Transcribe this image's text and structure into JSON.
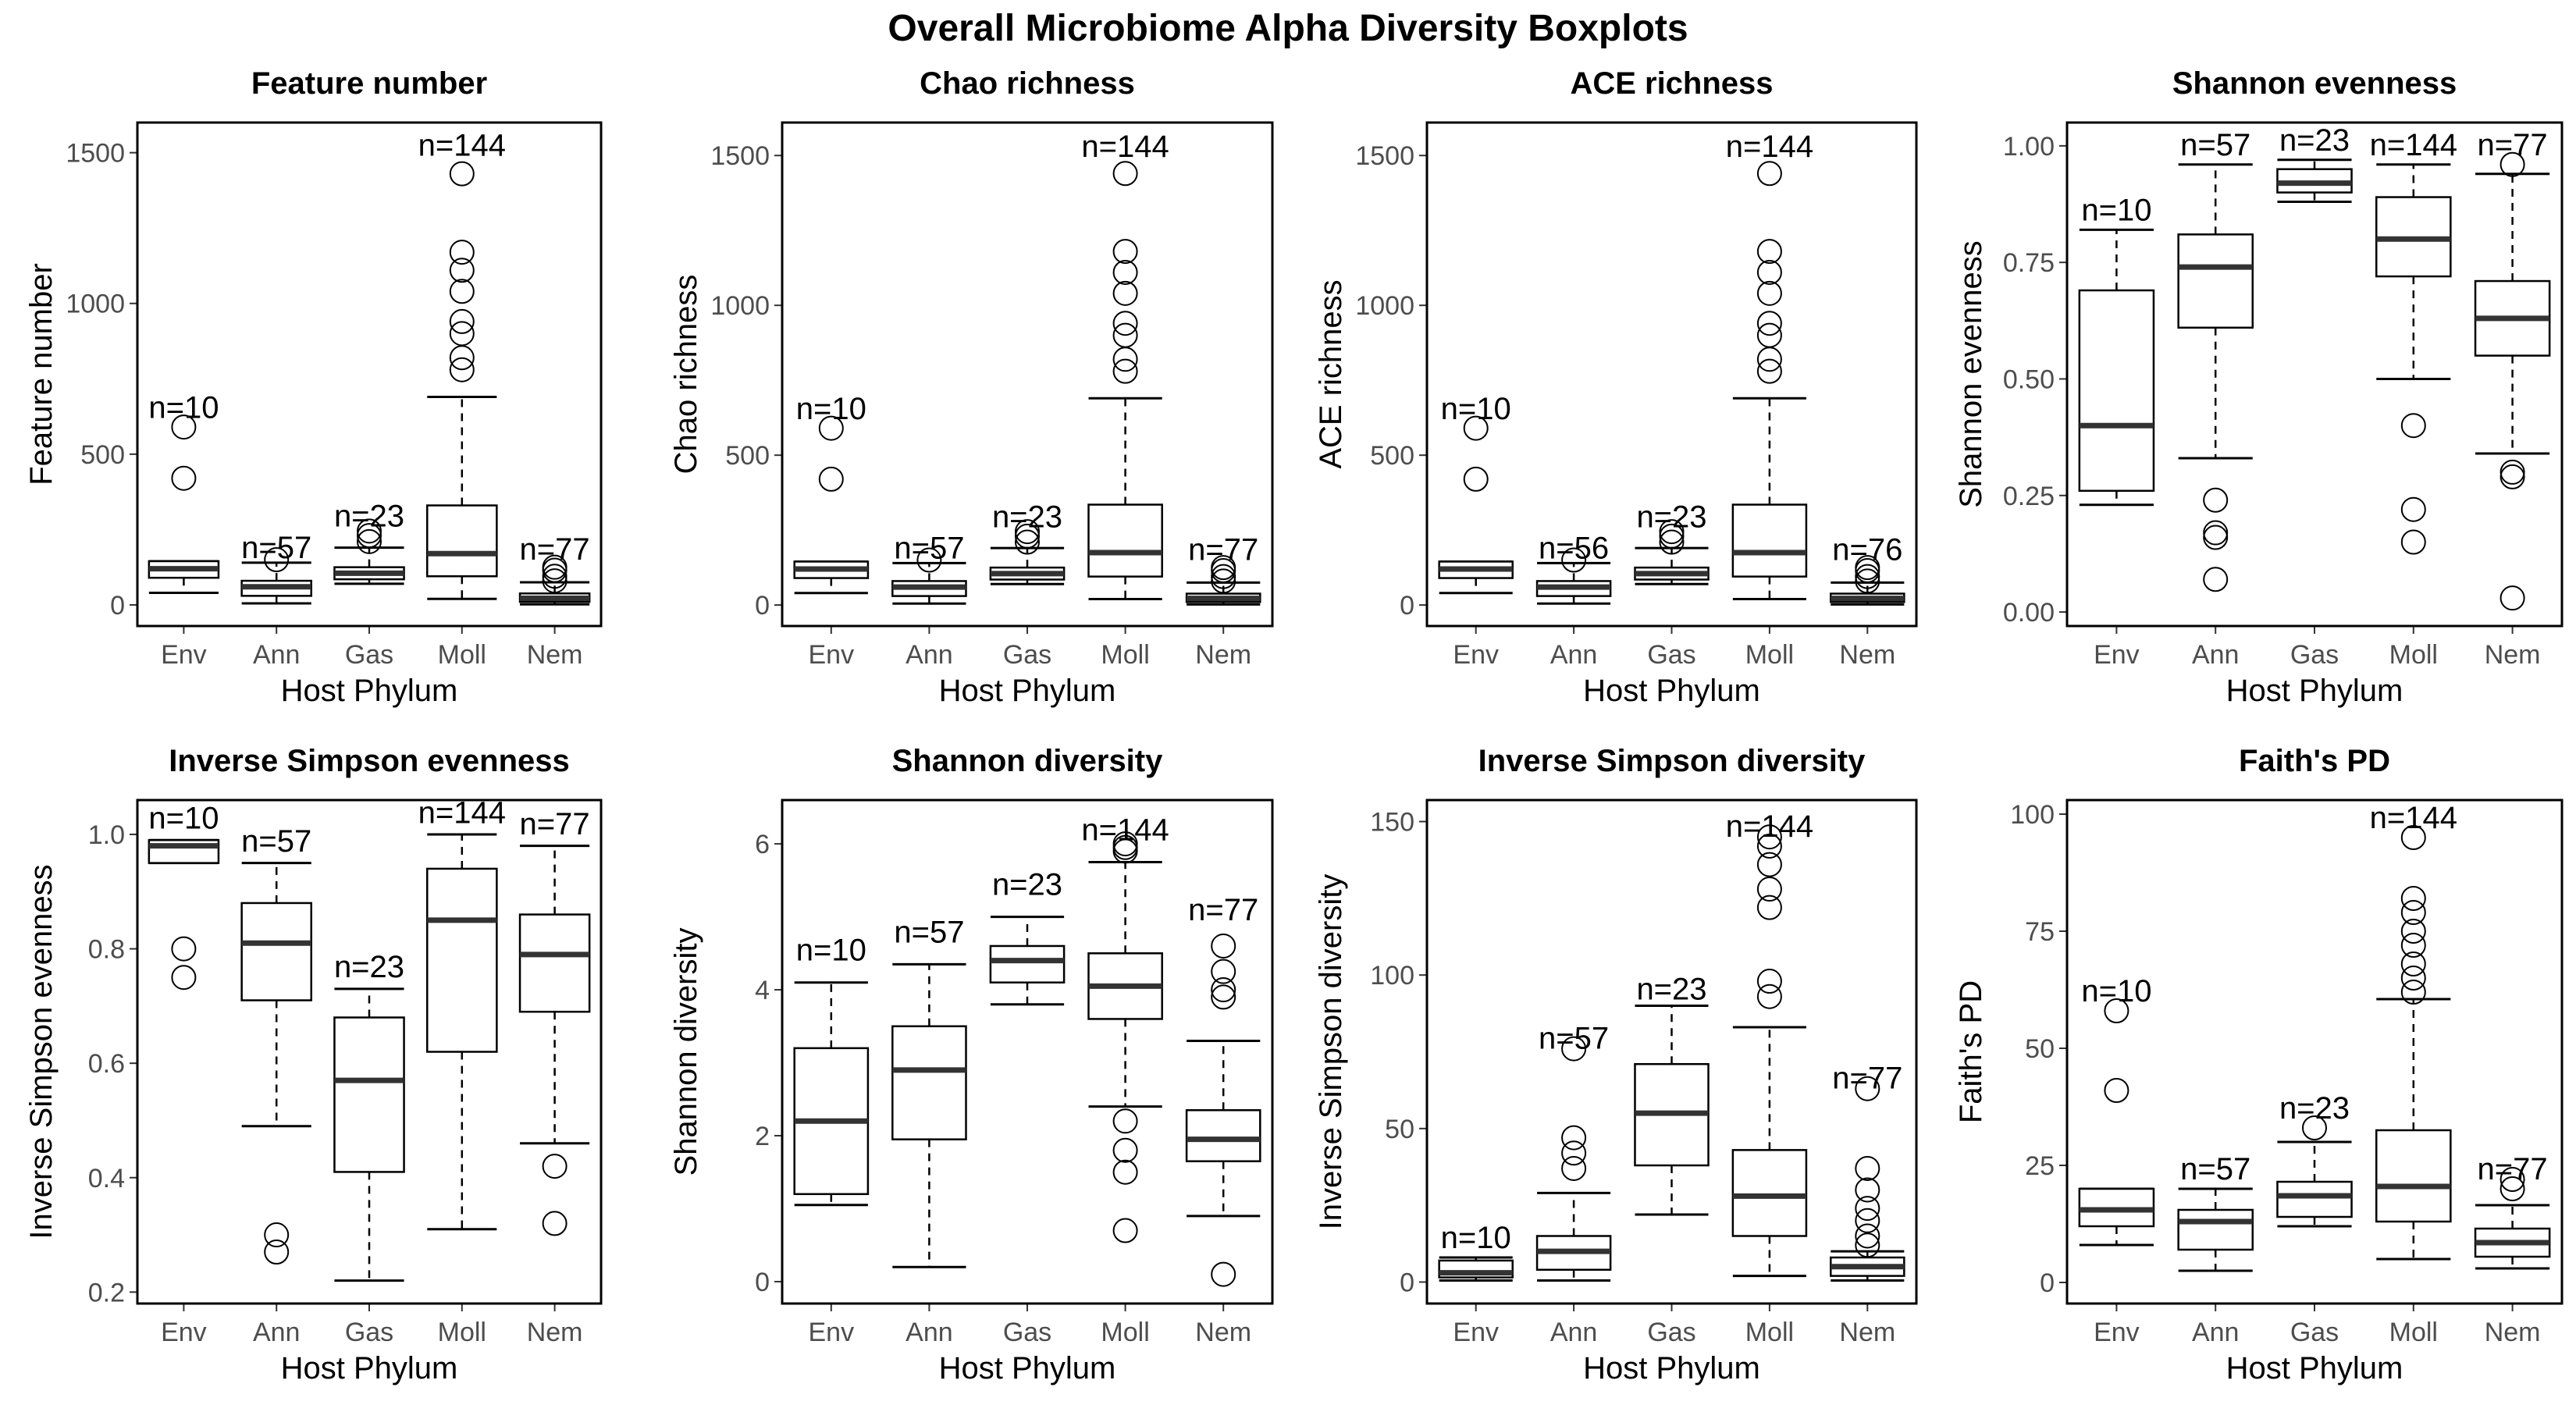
{
  "title": "Overall Microbiome Alpha Diversity Boxplots",
  "chart_data": [
    {
      "type": "boxplot",
      "title": "Feature number",
      "xlabel": "Host Phylum",
      "ylabel": "Feature number",
      "categories": [
        "Env",
        "Ann",
        "Gas",
        "Moll",
        "Nem"
      ],
      "ylim": [
        -70,
        1600
      ],
      "yticks": [
        0,
        500,
        1000,
        1500
      ],
      "boxes": [
        {
          "n": "n=10",
          "whisker_low": 40,
          "q1": 90,
          "median": 120,
          "q3": 145,
          "whisker_high": 145,
          "outliers": [
            420,
            590
          ],
          "label_y": 620
        },
        {
          "n": "n=57",
          "whisker_low": 5,
          "q1": 30,
          "median": 60,
          "q3": 80,
          "whisker_high": 140,
          "outliers": [
            150
          ],
          "label_y": 155
        },
        {
          "n": "n=23",
          "whisker_low": 70,
          "q1": 85,
          "median": 105,
          "q3": 125,
          "whisker_high": 190,
          "outliers": [
            210,
            230,
            245
          ],
          "label_y": 260
        },
        {
          "n": "n=144",
          "whisker_low": 20,
          "q1": 95,
          "median": 170,
          "q3": 330,
          "whisker_high": 690,
          "outliers": [
            780,
            820,
            900,
            940,
            1040,
            1110,
            1170,
            1430
          ],
          "label_y": 1490
        },
        {
          "n": "n=77",
          "whisker_low": 2,
          "q1": 10,
          "median": 22,
          "q3": 38,
          "whisker_high": 75,
          "outliers": [
            80,
            95,
            115,
            125
          ],
          "label_y": 150
        }
      ]
    },
    {
      "type": "boxplot",
      "title": "Chao richness",
      "xlabel": "Host Phylum",
      "ylabel": "Chao richness",
      "categories": [
        "Env",
        "Ann",
        "Gas",
        "Moll",
        "Nem"
      ],
      "ylim": [
        -70,
        1610
      ],
      "yticks": [
        0,
        500,
        1000,
        1500
      ],
      "boxes": [
        {
          "n": "n=10",
          "whisker_low": 40,
          "q1": 90,
          "median": 120,
          "q3": 145,
          "whisker_high": 145,
          "outliers": [
            420,
            590
          ],
          "label_y": 620
        },
        {
          "n": "n=57",
          "whisker_low": 5,
          "q1": 30,
          "median": 60,
          "q3": 80,
          "whisker_high": 140,
          "outliers": [
            150
          ],
          "label_y": 155
        },
        {
          "n": "n=23",
          "whisker_low": 70,
          "q1": 85,
          "median": 105,
          "q3": 125,
          "whisker_high": 190,
          "outliers": [
            210,
            230,
            245
          ],
          "label_y": 260
        },
        {
          "n": "n=144",
          "whisker_low": 20,
          "q1": 95,
          "median": 175,
          "q3": 335,
          "whisker_high": 690,
          "outliers": [
            780,
            820,
            900,
            940,
            1040,
            1110,
            1180,
            1440
          ],
          "label_y": 1495
        },
        {
          "n": "n=77",
          "whisker_low": 2,
          "q1": 10,
          "median": 22,
          "q3": 38,
          "whisker_high": 75,
          "outliers": [
            80,
            95,
            115,
            125
          ],
          "label_y": 150
        }
      ]
    },
    {
      "type": "boxplot",
      "title": "ACE richness",
      "xlabel": "Host Phylum",
      "ylabel": "ACE richness",
      "categories": [
        "Env",
        "Ann",
        "Gas",
        "Moll",
        "Nem"
      ],
      "ylim": [
        -70,
        1610
      ],
      "yticks": [
        0,
        500,
        1000,
        1500
      ],
      "boxes": [
        {
          "n": "n=10",
          "whisker_low": 40,
          "q1": 90,
          "median": 120,
          "q3": 145,
          "whisker_high": 145,
          "outliers": [
            420,
            590
          ],
          "label_y": 620
        },
        {
          "n": "n=56",
          "whisker_low": 5,
          "q1": 30,
          "median": 60,
          "q3": 80,
          "whisker_high": 140,
          "outliers": [
            150
          ],
          "label_y": 155
        },
        {
          "n": "n=23",
          "whisker_low": 70,
          "q1": 85,
          "median": 105,
          "q3": 125,
          "whisker_high": 190,
          "outliers": [
            210,
            230,
            245
          ],
          "label_y": 260
        },
        {
          "n": "n=144",
          "whisker_low": 20,
          "q1": 95,
          "median": 175,
          "q3": 335,
          "whisker_high": 690,
          "outliers": [
            780,
            820,
            900,
            940,
            1040,
            1110,
            1180,
            1440
          ],
          "label_y": 1495
        },
        {
          "n": "n=76",
          "whisker_low": 2,
          "q1": 10,
          "median": 22,
          "q3": 38,
          "whisker_high": 75,
          "outliers": [
            80,
            95,
            115,
            125
          ],
          "label_y": 150
        }
      ]
    },
    {
      "type": "boxplot",
      "title": "Shannon evenness",
      "xlabel": "Host Phylum",
      "ylabel": "Shannon evenness",
      "categories": [
        "Env",
        "Ann",
        "Gas",
        "Moll",
        "Nem"
      ],
      "ylim": [
        -0.03,
        1.05
      ],
      "yticks": [
        0.0,
        0.25,
        0.5,
        0.75,
        1.0
      ],
      "ytick_labels": [
        "0.00",
        "0.25",
        "0.50",
        "0.75",
        "1.00"
      ],
      "boxes": [
        {
          "n": "n=10",
          "whisker_low": 0.23,
          "q1": 0.26,
          "median": 0.4,
          "q3": 0.69,
          "whisker_high": 0.82,
          "outliers": [],
          "label_y": 0.84
        },
        {
          "n": "n=57",
          "whisker_low": 0.33,
          "q1": 0.61,
          "median": 0.74,
          "q3": 0.81,
          "whisker_high": 0.96,
          "outliers": [
            0.07,
            0.16,
            0.17,
            0.24
          ],
          "label_y": 0.98
        },
        {
          "n": "n=23",
          "whisker_low": 0.88,
          "q1": 0.9,
          "median": 0.92,
          "q3": 0.95,
          "whisker_high": 0.97,
          "outliers": [],
          "label_y": 0.99
        },
        {
          "n": "n=144",
          "whisker_low": 0.5,
          "q1": 0.72,
          "median": 0.8,
          "q3": 0.89,
          "whisker_high": 0.96,
          "outliers": [
            0.15,
            0.22,
            0.4
          ],
          "label_y": 0.98
        },
        {
          "n": "n=77",
          "whisker_low": 0.34,
          "q1": 0.55,
          "median": 0.63,
          "q3": 0.71,
          "whisker_high": 0.94,
          "outliers": [
            0.03,
            0.29,
            0.3,
            0.96
          ],
          "label_y": 0.98
        }
      ]
    },
    {
      "type": "boxplot",
      "title": "Inverse Simpson evenness",
      "xlabel": "Host Phylum",
      "ylabel": "Inverse Simpson evenness",
      "categories": [
        "Env",
        "Ann",
        "Gas",
        "Moll",
        "Nem"
      ],
      "ylim": [
        0.18,
        1.06
      ],
      "yticks": [
        0.2,
        0.4,
        0.6,
        0.8,
        1.0
      ],
      "ytick_labels": [
        "0.2",
        "0.4",
        "0.6",
        "0.8",
        "1.0"
      ],
      "boxes": [
        {
          "n": "n=10",
          "whisker_low": 0.95,
          "q1": 0.95,
          "median": 0.98,
          "q3": 0.99,
          "whisker_high": 0.99,
          "outliers": [
            0.75,
            0.8
          ],
          "label_y": 1.01
        },
        {
          "n": "n=57",
          "whisker_low": 0.49,
          "q1": 0.71,
          "median": 0.81,
          "q3": 0.88,
          "whisker_high": 0.95,
          "outliers": [
            0.27,
            0.3
          ],
          "label_y": 0.97
        },
        {
          "n": "n=23",
          "whisker_low": 0.22,
          "q1": 0.41,
          "median": 0.57,
          "q3": 0.68,
          "whisker_high": 0.73,
          "outliers": [],
          "label_y": 0.75
        },
        {
          "n": "n=144",
          "whisker_low": 0.31,
          "q1": 0.62,
          "median": 0.85,
          "q3": 0.94,
          "whisker_high": 1.0,
          "outliers": [],
          "label_y": 1.02
        },
        {
          "n": "n=77",
          "whisker_low": 0.46,
          "q1": 0.69,
          "median": 0.79,
          "q3": 0.86,
          "whisker_high": 0.98,
          "outliers": [
            0.32,
            0.42
          ],
          "label_y": 1.0
        }
      ]
    },
    {
      "type": "boxplot",
      "title": "Shannon diversity",
      "xlabel": "Host Phylum",
      "ylabel": "Shannon diversity",
      "categories": [
        "Env",
        "Ann",
        "Gas",
        "Moll",
        "Nem"
      ],
      "ylim": [
        -0.3,
        6.6
      ],
      "yticks": [
        0,
        2,
        4,
        6
      ],
      "boxes": [
        {
          "n": "n=10",
          "whisker_low": 1.05,
          "q1": 1.2,
          "median": 2.2,
          "q3": 3.2,
          "whisker_high": 4.1,
          "outliers": [],
          "label_y": 4.4
        },
        {
          "n": "n=57",
          "whisker_low": 0.2,
          "q1": 1.95,
          "median": 2.9,
          "q3": 3.5,
          "whisker_high": 4.35,
          "outliers": [],
          "label_y": 4.65
        },
        {
          "n": "n=23",
          "whisker_low": 3.8,
          "q1": 4.1,
          "median": 4.4,
          "q3": 4.6,
          "whisker_high": 5.0,
          "outliers": [],
          "label_y": 5.3
        },
        {
          "n": "n=144",
          "whisker_low": 2.4,
          "q1": 3.6,
          "median": 4.05,
          "q3": 4.5,
          "whisker_high": 5.75,
          "outliers": [
            0.7,
            1.5,
            1.8,
            2.2,
            5.9,
            5.95,
            6.0
          ],
          "label_y": 6.05
        },
        {
          "n": "n=77",
          "whisker_low": 0.9,
          "q1": 1.65,
          "median": 1.95,
          "q3": 2.35,
          "whisker_high": 3.3,
          "outliers": [
            0.1,
            3.9,
            4.0,
            4.25,
            4.6
          ],
          "label_y": 4.95
        }
      ]
    },
    {
      "type": "boxplot",
      "title": "Inverse Simpson diversity",
      "xlabel": "Host Phylum",
      "ylabel": "Inverse Simpson diversity",
      "categories": [
        "Env",
        "Ann",
        "Gas",
        "Moll",
        "Nem"
      ],
      "ylim": [
        -7,
        157
      ],
      "yticks": [
        0,
        50,
        100,
        150
      ],
      "boxes": [
        {
          "n": "n=10",
          "whisker_low": 0.5,
          "q1": 1.5,
          "median": 3,
          "q3": 7,
          "whisker_high": 8,
          "outliers": [],
          "label_y": 11
        },
        {
          "n": "n=57",
          "whisker_low": 0.5,
          "q1": 4,
          "median": 10,
          "q3": 15,
          "whisker_high": 29,
          "outliers": [
            37,
            42,
            47,
            76
          ],
          "label_y": 76
        },
        {
          "n": "n=23",
          "whisker_low": 22,
          "q1": 38,
          "median": 55,
          "q3": 71,
          "whisker_high": 90,
          "outliers": [],
          "label_y": 92
        },
        {
          "n": "n=144",
          "whisker_low": 2,
          "q1": 15,
          "median": 28,
          "q3": 43,
          "whisker_high": 83,
          "outliers": [
            93,
            98,
            122,
            128,
            136,
            142,
            145
          ],
          "label_y": 145
        },
        {
          "n": "n=77",
          "whisker_low": 0.5,
          "q1": 2,
          "median": 5,
          "q3": 8,
          "whisker_high": 10,
          "outliers": [
            12,
            15,
            20,
            24,
            30,
            37,
            63
          ],
          "label_y": 63
        }
      ]
    },
    {
      "type": "boxplot",
      "title": "Faith's PD",
      "xlabel": "Host Phylum",
      "ylabel": "Faith's PD",
      "categories": [
        "Env",
        "Ann",
        "Gas",
        "Moll",
        "Nem"
      ],
      "ylim": [
        -4.5,
        103
      ],
      "yticks": [
        0,
        25,
        50,
        75,
        100
      ],
      "boxes": [
        {
          "n": "n=10",
          "whisker_low": 8,
          "q1": 12,
          "median": 15.5,
          "q3": 20,
          "whisker_high": 20,
          "outliers": [
            41,
            58
          ],
          "label_y": 60
        },
        {
          "n": "n=57",
          "whisker_low": 2.5,
          "q1": 7,
          "median": 13,
          "q3": 15.5,
          "whisker_high": 20,
          "outliers": [],
          "label_y": 22
        },
        {
          "n": "n=23",
          "whisker_low": 12,
          "q1": 14,
          "median": 18.5,
          "q3": 21.5,
          "whisker_high": 30,
          "outliers": [
            33
          ],
          "label_y": 35
        },
        {
          "n": "n=144",
          "whisker_low": 5,
          "q1": 13,
          "median": 20.5,
          "q3": 32.5,
          "whisker_high": 60.5,
          "outliers": [
            62,
            65,
            68,
            72,
            75,
            79,
            82,
            95
          ],
          "label_y": 97
        },
        {
          "n": "n=77",
          "whisker_low": 3,
          "q1": 5.5,
          "median": 8.5,
          "q3": 11.5,
          "whisker_high": 16.5,
          "outliers": [
            20,
            22
          ],
          "label_y": 22
        }
      ]
    }
  ]
}
